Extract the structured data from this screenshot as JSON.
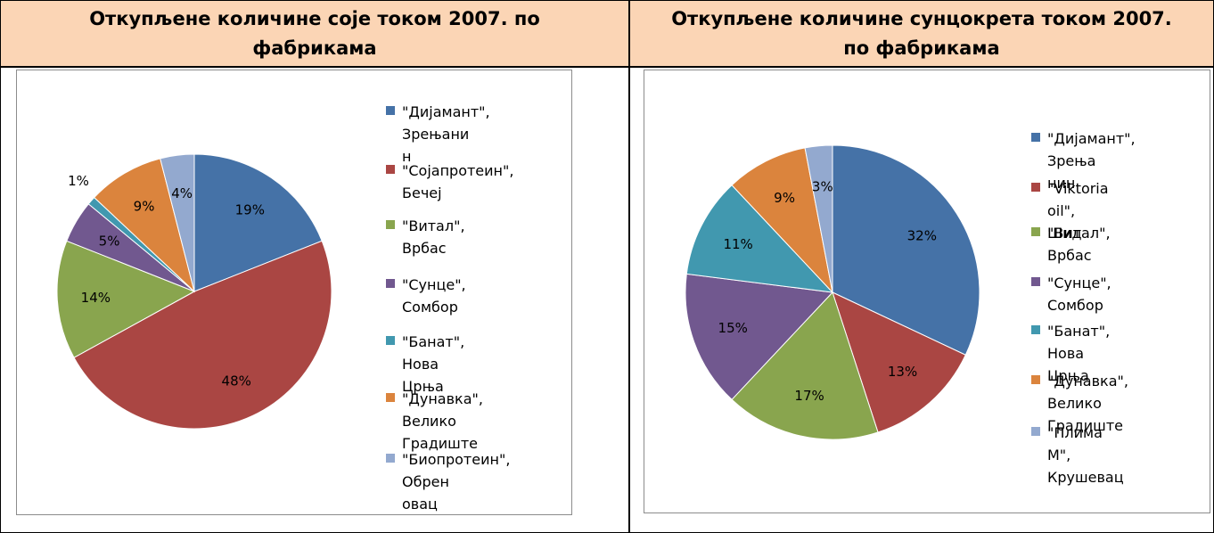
{
  "chart_data": [
    {
      "type": "pie",
      "title": "Откупљене количине соје током 2007.  по фабрикама",
      "title_lines": [
        "Откупљене количине соје током 2007.  по",
        "фабрикама"
      ],
      "start_angle_deg": 0,
      "direction": "clockwise",
      "legend_position": "right",
      "categories": [
        "\"Дијамант\", Зрењанин",
        "\"Сојапротеин\", Бечеј",
        "\"Витал\", Врбас",
        "\"Сунце\", Сомбор",
        "\"Банат\", Нова Црња",
        "\"Дунавка\", Велико Градиште",
        "\"Биопротеин\", Обреновац"
      ],
      "legend_lines": [
        [
          "\"Дијамант\", Зрењани",
          "н"
        ],
        [
          "\"Сојапротеин\", Бечеј"
        ],
        [
          "\"Витал\", Врбас"
        ],
        [
          "\"Сунце\", Сомбор"
        ],
        [
          "\"Банат\", Нова Црња"
        ],
        [
          "\"Дунавка\", Велико",
          "Градиште"
        ],
        [
          "\"Биопротеин\", Обрен",
          "овац"
        ]
      ],
      "values": [
        19,
        48,
        14,
        5,
        1,
        9,
        4
      ],
      "labels": [
        "19%",
        "48%",
        "14%",
        "5%",
        "1%",
        "9%",
        "4%"
      ],
      "colors": [
        "#4572a7",
        "#aa4643",
        "#89a54e",
        "#71588f",
        "#4198af",
        "#db843d",
        "#93a9cf"
      ]
    },
    {
      "type": "pie",
      "title": "Откупљене количине сунцокрета током 2007. по фабрикама",
      "title_lines": [
        "Откупљене количине сунцокрета током 2007.",
        "по фабрикама"
      ],
      "start_angle_deg": 0,
      "direction": "clockwise",
      "legend_position": "right",
      "categories": [
        "\"Дијамант\", Зрењанин",
        "\"Viktoria oil\", Шид",
        "\"Витал\", Врбас",
        "\"Сунце\", Сомбор",
        "\"Банат\", Нова Црња",
        "\"Дунавка\", Велико Градиште",
        "\"Плима М\", Крушевац"
      ],
      "legend_lines": [
        [
          "\"Дијамант\", Зрења",
          "нин"
        ],
        [
          "\"Viktoria oil\", Шид"
        ],
        [
          "\"Витал\", Врбас"
        ],
        [
          "\"Сунце\", Сомбор"
        ],
        [
          "\"Банат\", Нова",
          "Црња"
        ],
        [
          "\"Дунавка\", Велико",
          "Градиште"
        ],
        [
          "\"Плима",
          "М\", Крушевац"
        ]
      ],
      "values": [
        32,
        13,
        17,
        15,
        11,
        9,
        3
      ],
      "labels": [
        "32%",
        "13%",
        "17%",
        "15%",
        "11%",
        "9%",
        "3%"
      ],
      "colors": [
        "#4572a7",
        "#aa4643",
        "#89a54e",
        "#71588f",
        "#4198af",
        "#db843d",
        "#93a9cf"
      ]
    }
  ]
}
